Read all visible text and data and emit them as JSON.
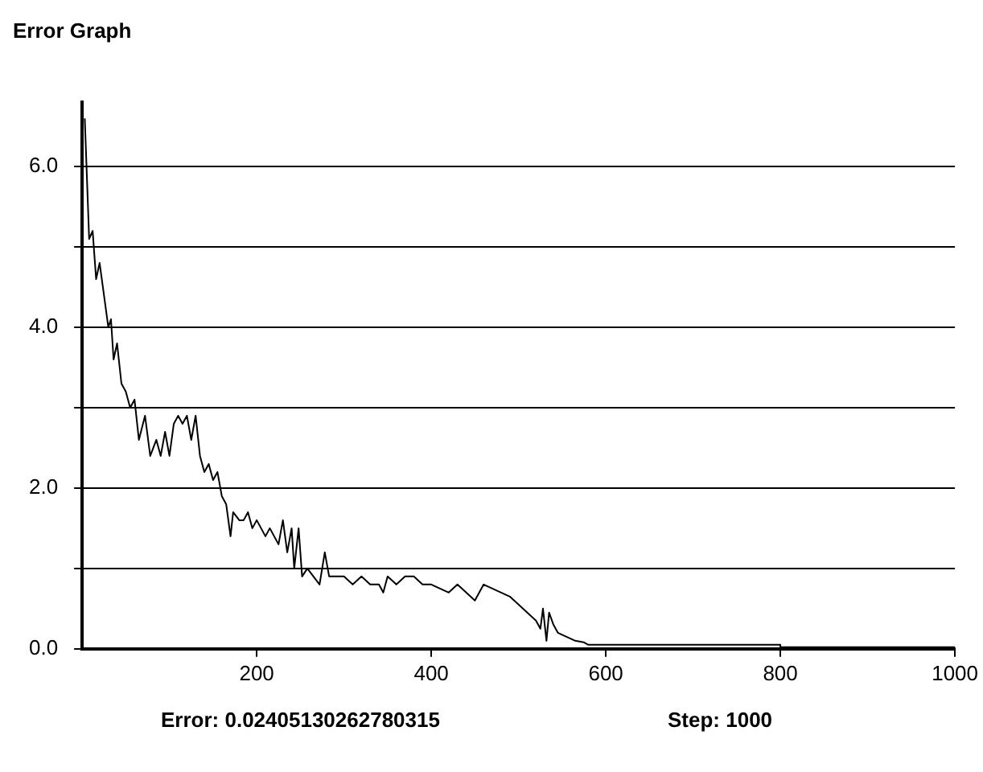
{
  "chart_data": {
    "type": "line",
    "title": "Error Graph",
    "x": [
      3,
      8,
      12,
      16,
      20,
      25,
      30,
      33,
      36,
      40,
      45,
      50,
      55,
      60,
      65,
      72,
      78,
      85,
      90,
      95,
      100,
      105,
      110,
      115,
      120,
      125,
      130,
      135,
      140,
      145,
      150,
      155,
      160,
      165,
      170,
      173,
      180,
      185,
      190,
      195,
      200,
      205,
      210,
      215,
      220,
      225,
      230,
      235,
      240,
      243,
      248,
      252,
      258,
      265,
      272,
      278,
      283,
      290,
      300,
      310,
      320,
      330,
      340,
      345,
      350,
      360,
      370,
      380,
      390,
      400,
      410,
      420,
      430,
      440,
      450,
      460,
      470,
      480,
      490,
      500,
      510,
      520,
      525,
      528,
      532,
      535,
      540,
      545,
      555,
      565,
      575,
      580,
      600,
      700,
      800,
      800,
      1000
    ],
    "series": [
      {
        "color": "#000000",
        "values": [
          6.6,
          5.1,
          5.2,
          4.6,
          4.8,
          4.4,
          4.0,
          4.1,
          3.6,
          3.8,
          3.3,
          3.2,
          3.0,
          3.1,
          2.6,
          2.9,
          2.4,
          2.6,
          2.4,
          2.7,
          2.4,
          2.8,
          2.9,
          2.8,
          2.9,
          2.6,
          2.9,
          2.4,
          2.2,
          2.3,
          2.1,
          2.2,
          1.9,
          1.8,
          1.4,
          1.7,
          1.6,
          1.6,
          1.7,
          1.5,
          1.6,
          1.5,
          1.4,
          1.5,
          1.4,
          1.3,
          1.6,
          1.2,
          1.5,
          1.0,
          1.5,
          0.9,
          1.0,
          0.9,
          0.8,
          1.2,
          0.9,
          0.9,
          0.9,
          0.8,
          0.9,
          0.8,
          0.8,
          0.7,
          0.9,
          0.8,
          0.9,
          0.9,
          0.8,
          0.8,
          0.75,
          0.7,
          0.8,
          0.7,
          0.6,
          0.8,
          0.75,
          0.7,
          0.65,
          0.55,
          0.45,
          0.35,
          0.25,
          0.5,
          0.1,
          0.45,
          0.3,
          0.2,
          0.15,
          0.1,
          0.08,
          0.05,
          0.05,
          0.05,
          0.05,
          0.02,
          0.02
        ]
      }
    ],
    "xlim": [
      0,
      1000
    ],
    "xticks": [
      200,
      400,
      600,
      800,
      1000
    ],
    "ylim": [
      0,
      6.8
    ],
    "yticks": [
      {
        "value": 0,
        "label": "0.0"
      },
      {
        "value": 1,
        "label": null
      },
      {
        "value": 2,
        "label": "2.0"
      },
      {
        "value": 3,
        "label": null
      },
      {
        "value": 4,
        "label": "4.0"
      },
      {
        "value": 5,
        "label": null
      },
      {
        "value": 6,
        "label": "6.0"
      }
    ],
    "grid": "y",
    "marker": "none",
    "line_style": "solid",
    "annotations": [
      "Error: 0.02405130262780315",
      "Step: 1000"
    ]
  }
}
